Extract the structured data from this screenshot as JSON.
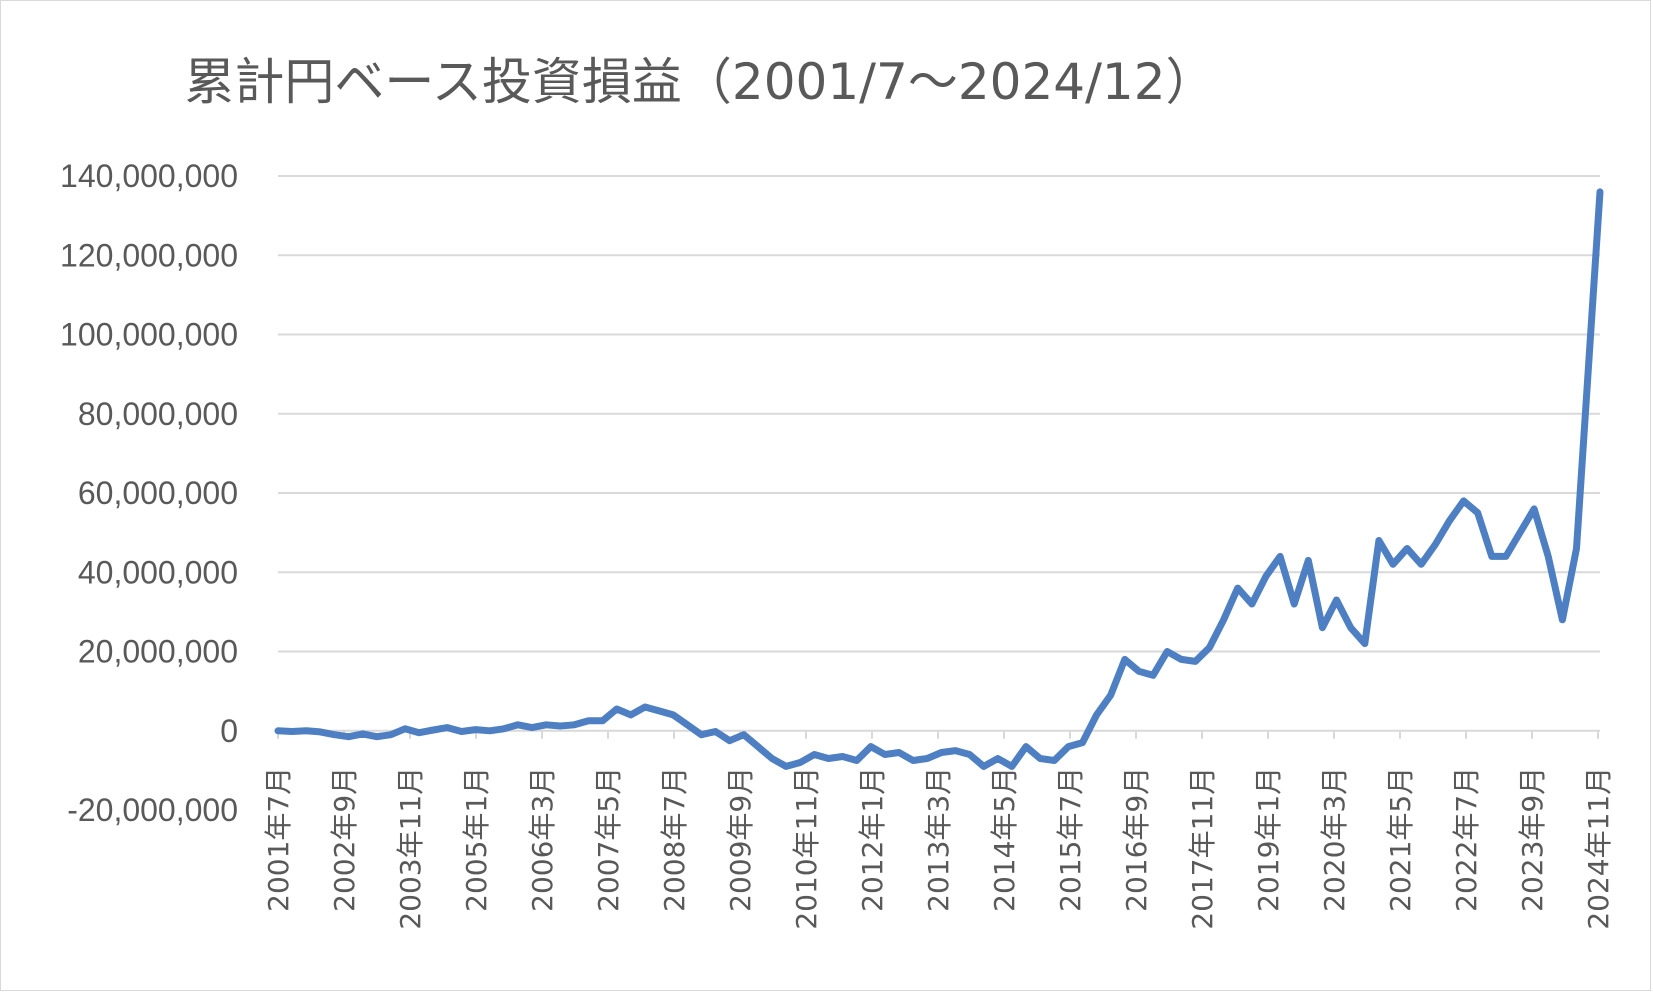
{
  "chart_data": {
    "type": "line",
    "title": "累計円ベース投資損益（2001/7～2024/12）",
    "ylim": [
      -20000000,
      140000000
    ],
    "y_ticks": [
      "140,000,000",
      "120,000,000",
      "100,000,000",
      "80,000,000",
      "60,000,000",
      "40,000,000",
      "20,000,000",
      "0",
      "-20,000,000"
    ],
    "y_tick_values": [
      140000000,
      120000000,
      100000000,
      80000000,
      60000000,
      40000000,
      20000000,
      0,
      -20000000
    ],
    "negative_tick_color": "#ff0000",
    "x_range": [
      "2001-07",
      "2024-12"
    ],
    "x_ticks": [
      "2001年7月",
      "2002年9月",
      "2003年11月",
      "2005年1月",
      "2006年3月",
      "2007年5月",
      "2008年7月",
      "2009年9月",
      "2010年11月",
      "2012年1月",
      "2013年3月",
      "2014年5月",
      "2015年7月",
      "2016年9月",
      "2017年11月",
      "2019年1月",
      "2020年3月",
      "2021年5月",
      "2022年7月",
      "2023年9月",
      "2024年11月"
    ],
    "grid": true,
    "legend": "none",
    "series_color": "#4e7fc2",
    "series": [
      {
        "points": [
          [
            "2001-07",
            0
          ],
          [
            "2001-10",
            -200000
          ],
          [
            "2002-01",
            0
          ],
          [
            "2002-04",
            -300000
          ],
          [
            "2002-07",
            -1000000
          ],
          [
            "2002-10",
            -1500000
          ],
          [
            "2003-01",
            -800000
          ],
          [
            "2003-04",
            -1500000
          ],
          [
            "2003-07",
            -1000000
          ],
          [
            "2003-10",
            500000
          ],
          [
            "2004-01",
            -500000
          ],
          [
            "2004-04",
            200000
          ],
          [
            "2004-07",
            800000
          ],
          [
            "2004-10",
            -200000
          ],
          [
            "2005-01",
            300000
          ],
          [
            "2005-04",
            0
          ],
          [
            "2005-07",
            500000
          ],
          [
            "2005-10",
            1500000
          ],
          [
            "2006-01",
            800000
          ],
          [
            "2006-04",
            1500000
          ],
          [
            "2006-07",
            1200000
          ],
          [
            "2006-10",
            1500000
          ],
          [
            "2007-01",
            2500000
          ],
          [
            "2007-04",
            2500000
          ],
          [
            "2007-07",
            5500000
          ],
          [
            "2007-10",
            4000000
          ],
          [
            "2008-01",
            6000000
          ],
          [
            "2008-04",
            5000000
          ],
          [
            "2008-07",
            4000000
          ],
          [
            "2008-10",
            1500000
          ],
          [
            "2009-01",
            -1000000
          ],
          [
            "2009-04",
            -200000
          ],
          [
            "2009-07",
            -2500000
          ],
          [
            "2009-10",
            -1000000
          ],
          [
            "2010-01",
            -4000000
          ],
          [
            "2010-04",
            -7000000
          ],
          [
            "2010-07",
            -9000000
          ],
          [
            "2010-10",
            -8000000
          ],
          [
            "2011-01",
            -6000000
          ],
          [
            "2011-04",
            -7000000
          ],
          [
            "2011-07",
            -6500000
          ],
          [
            "2011-10",
            -7500000
          ],
          [
            "2012-01",
            -4000000
          ],
          [
            "2012-04",
            -6000000
          ],
          [
            "2012-07",
            -5500000
          ],
          [
            "2012-10",
            -7500000
          ],
          [
            "2013-01",
            -7000000
          ],
          [
            "2013-04",
            -5500000
          ],
          [
            "2013-07",
            -5000000
          ],
          [
            "2013-10",
            -6000000
          ],
          [
            "2014-01",
            -9000000
          ],
          [
            "2014-04",
            -7000000
          ],
          [
            "2014-07",
            -9000000
          ],
          [
            "2014-10",
            -4000000
          ],
          [
            "2015-01",
            -7000000
          ],
          [
            "2015-04",
            -7500000
          ],
          [
            "2015-07",
            -4000000
          ],
          [
            "2015-10",
            -3000000
          ],
          [
            "2016-01",
            4000000
          ],
          [
            "2016-04",
            9000000
          ],
          [
            "2016-07",
            18000000
          ],
          [
            "2016-10",
            15000000
          ],
          [
            "2017-01",
            14000000
          ],
          [
            "2017-04",
            20000000
          ],
          [
            "2017-07",
            18000000
          ],
          [
            "2017-10",
            17500000
          ],
          [
            "2018-01",
            21000000
          ],
          [
            "2018-04",
            28000000
          ],
          [
            "2018-07",
            36000000
          ],
          [
            "2018-10",
            32000000
          ],
          [
            "2019-01",
            39000000
          ],
          [
            "2019-04",
            44000000
          ],
          [
            "2019-07",
            32000000
          ],
          [
            "2019-10",
            43000000
          ],
          [
            "2020-01",
            26000000
          ],
          [
            "2020-04",
            33000000
          ],
          [
            "2020-07",
            26000000
          ],
          [
            "2020-10",
            22000000
          ],
          [
            "2021-01",
            48000000
          ],
          [
            "2021-04",
            42000000
          ],
          [
            "2021-07",
            46000000
          ],
          [
            "2021-10",
            42000000
          ],
          [
            "2022-01",
            47000000
          ],
          [
            "2022-04",
            53000000
          ],
          [
            "2022-07",
            58000000
          ],
          [
            "2022-10",
            55000000
          ],
          [
            "2023-01",
            44000000
          ],
          [
            "2023-04",
            44000000
          ],
          [
            "2023-07",
            50000000
          ],
          [
            "2023-10",
            56000000
          ],
          [
            "2024-01",
            44000000
          ],
          [
            "2024-04",
            28000000
          ],
          [
            "2024-07",
            46000000
          ],
          [
            "2024-12",
            136000000
          ]
        ]
      }
    ]
  }
}
